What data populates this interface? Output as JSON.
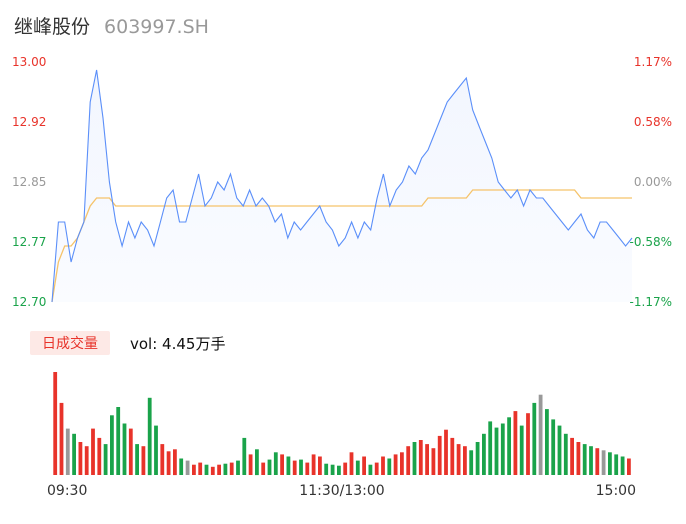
{
  "header": {
    "name": "继峰股份",
    "code": "603997.SH"
  },
  "volume_panel": {
    "tab_label": "日成交量",
    "vol_text": "vol: 4.45万手"
  },
  "colors": {
    "price_line": "#5b8ff9",
    "avg_line": "#f5c36a",
    "up": "#e8332a",
    "down": "#1aa34a",
    "flat": "#999999"
  },
  "chart_data": {
    "type": "line",
    "y_left_ticks": [
      "13.00",
      "12.92",
      "12.85",
      "12.77",
      "12.70"
    ],
    "y_right_ticks": [
      "1.17%",
      "0.58%",
      "0.00%",
      "-0.58%",
      "-1.17%"
    ],
    "x_ticks": [
      "09:30",
      "11:30/13:00",
      "15:00"
    ],
    "ylim": [
      12.7,
      13.0
    ],
    "prev_close": 12.85,
    "price_series": [
      12.7,
      12.8,
      12.8,
      12.75,
      12.78,
      12.8,
      12.95,
      12.99,
      12.93,
      12.85,
      12.8,
      12.77,
      12.8,
      12.78,
      12.8,
      12.79,
      12.77,
      12.8,
      12.83,
      12.84,
      12.8,
      12.8,
      12.83,
      12.86,
      12.82,
      12.83,
      12.85,
      12.84,
      12.86,
      12.83,
      12.82,
      12.84,
      12.82,
      12.83,
      12.82,
      12.8,
      12.81,
      12.78,
      12.8,
      12.79,
      12.8,
      12.81,
      12.82,
      12.8,
      12.79,
      12.77,
      12.78,
      12.8,
      12.78,
      12.8,
      12.79,
      12.83,
      12.86,
      12.82,
      12.84,
      12.85,
      12.87,
      12.86,
      12.88,
      12.89,
      12.91,
      12.93,
      12.95,
      12.96,
      12.97,
      12.98,
      12.94,
      12.92,
      12.9,
      12.88,
      12.85,
      12.84,
      12.83,
      12.84,
      12.82,
      12.84,
      12.83,
      12.83,
      12.82,
      12.81,
      12.8,
      12.79,
      12.8,
      12.81,
      12.79,
      12.78,
      12.8,
      12.8,
      12.79,
      12.78,
      12.77,
      12.78
    ],
    "avg_series": [
      12.7,
      12.75,
      12.77,
      12.77,
      12.78,
      12.8,
      12.82,
      12.83,
      12.83,
      12.83,
      12.82,
      12.82,
      12.82,
      12.82,
      12.82,
      12.82,
      12.82,
      12.82,
      12.82,
      12.82,
      12.82,
      12.82,
      12.82,
      12.82,
      12.82,
      12.82,
      12.82,
      12.82,
      12.82,
      12.82,
      12.82,
      12.82,
      12.82,
      12.82,
      12.82,
      12.82,
      12.82,
      12.82,
      12.82,
      12.82,
      12.82,
      12.82,
      12.82,
      12.82,
      12.82,
      12.82,
      12.82,
      12.82,
      12.82,
      12.82,
      12.82,
      12.82,
      12.82,
      12.82,
      12.82,
      12.82,
      12.82,
      12.82,
      12.82,
      12.83,
      12.83,
      12.83,
      12.83,
      12.83,
      12.83,
      12.83,
      12.84,
      12.84,
      12.84,
      12.84,
      12.84,
      12.84,
      12.84,
      12.84,
      12.84,
      12.84,
      12.84,
      12.84,
      12.84,
      12.84,
      12.84,
      12.84,
      12.84,
      12.83,
      12.83,
      12.83,
      12.83,
      12.83,
      12.83,
      12.83,
      12.83,
      12.83
    ],
    "volume_series": [
      100,
      70,
      45,
      40,
      32,
      28,
      45,
      36,
      30,
      58,
      66,
      50,
      45,
      30,
      28,
      75,
      48,
      30,
      23,
      25,
      16,
      14,
      10,
      12,
      10,
      8,
      10,
      11,
      12,
      14,
      36,
      20,
      25,
      12,
      15,
      22,
      20,
      18,
      14,
      15,
      12,
      20,
      18,
      11,
      10,
      9,
      12,
      22,
      14,
      18,
      10,
      12,
      18,
      16,
      20,
      22,
      28,
      32,
      34,
      30,
      26,
      38,
      44,
      36,
      30,
      28,
      24,
      32,
      40,
      52,
      46,
      50,
      56,
      62,
      48,
      60,
      70,
      78,
      64,
      54,
      48,
      40,
      36,
      32,
      30,
      28,
      26,
      24,
      22,
      20,
      18,
      16
    ]
  }
}
